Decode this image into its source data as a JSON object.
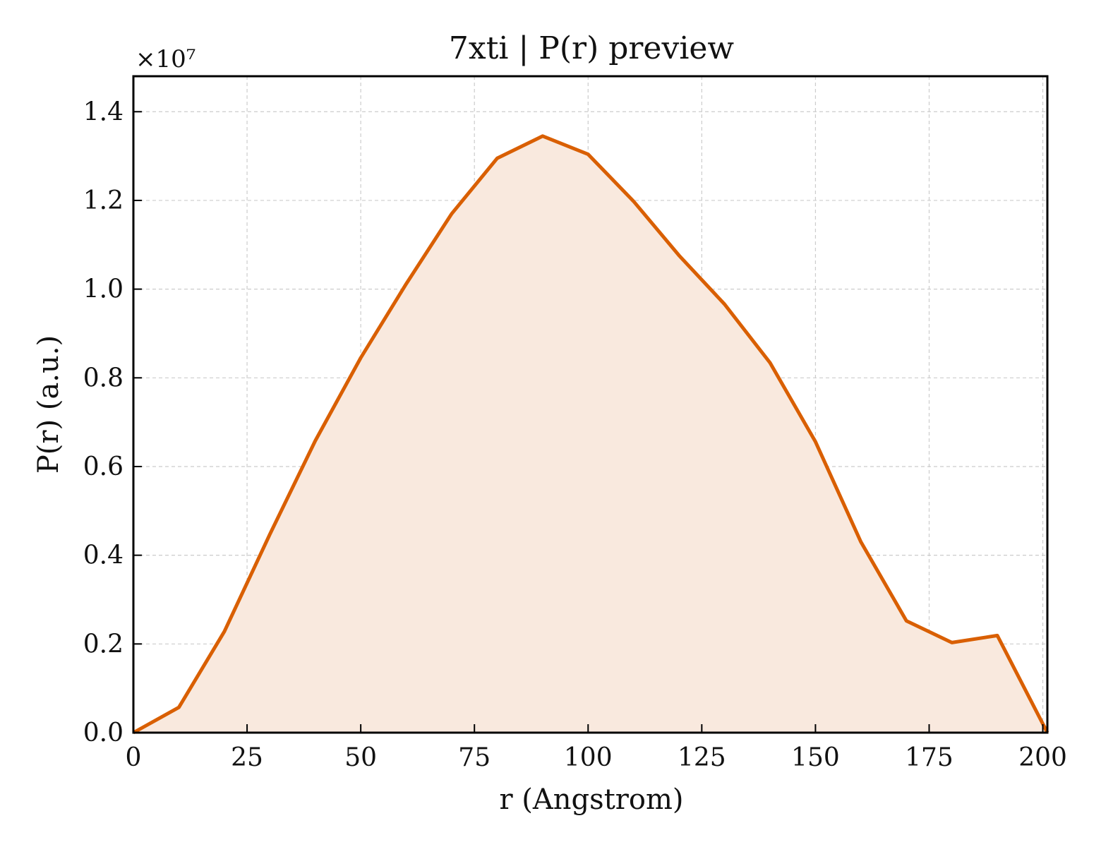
{
  "chart_data": {
    "type": "area",
    "title": "7xti | P(r) preview",
    "xlabel": "r (Angstrom)",
    "ylabel": "P(r) (a.u.)",
    "y_offset_label": "×10⁷",
    "xlim": [
      0,
      201
    ],
    "ylim": [
      0,
      1.48
    ],
    "x_ticks": [
      0,
      25,
      50,
      75,
      100,
      125,
      150,
      175,
      200
    ],
    "x_tick_labels": [
      "0",
      "25",
      "50",
      "75",
      "100",
      "125",
      "150",
      "175",
      "200"
    ],
    "y_ticks": [
      0.0,
      0.2,
      0.4,
      0.6,
      0.8,
      1.0,
      1.2,
      1.4
    ],
    "y_tick_labels": [
      "0.0",
      "0.2",
      "0.4",
      "0.6",
      "0.8",
      "1.0",
      "1.2",
      "1.4"
    ],
    "grid": true,
    "line_color": "#d95f02",
    "fill_color": "#f9e9de",
    "series": [
      {
        "x": [
          0,
          10,
          20,
          30,
          40,
          50,
          60,
          70,
          80,
          90,
          100,
          110,
          120,
          130,
          140,
          150,
          160,
          170,
          180,
          190,
          201
        ],
        "y": [
          0.0,
          0.057,
          0.228,
          0.447,
          0.658,
          0.845,
          1.012,
          1.17,
          1.295,
          1.345,
          1.304,
          1.198,
          1.076,
          0.966,
          0.834,
          0.656,
          0.43,
          0.252,
          0.203,
          0.219,
          0.0
        ]
      }
    ]
  }
}
